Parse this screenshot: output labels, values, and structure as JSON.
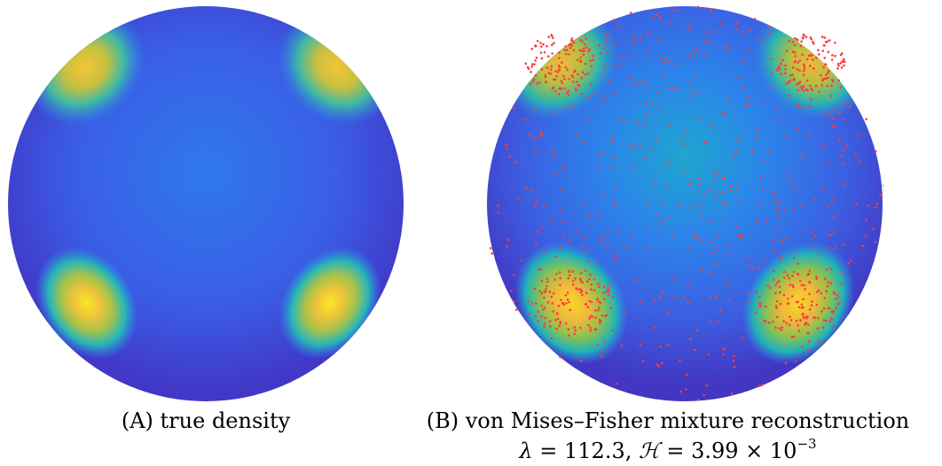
{
  "panels": [
    {
      "id": "A",
      "caption": "(A) true density",
      "show_samples": false
    },
    {
      "id": "B",
      "caption": "(B) von Mises–Fisher mixture reconstruction",
      "show_samples": true
    }
  ],
  "caption_b_line2": {
    "lambda_symbol": "λ",
    "lambda_value": "= 112.3,",
    "h_symbol": "ℋ",
    "h_value": "= 3.99 × 10",
    "h_exponent": "−3"
  },
  "colors": {
    "colormap": [
      "#3e26a8",
      "#4843d9",
      "#3d71f7",
      "#2696e6",
      "#14b2c6",
      "#44c08a",
      "#99c33f",
      "#ddb82e",
      "#fcd024",
      "#f9fb15"
    ],
    "sample_points": "#ff3b3b",
    "background": "#ffffff"
  }
}
